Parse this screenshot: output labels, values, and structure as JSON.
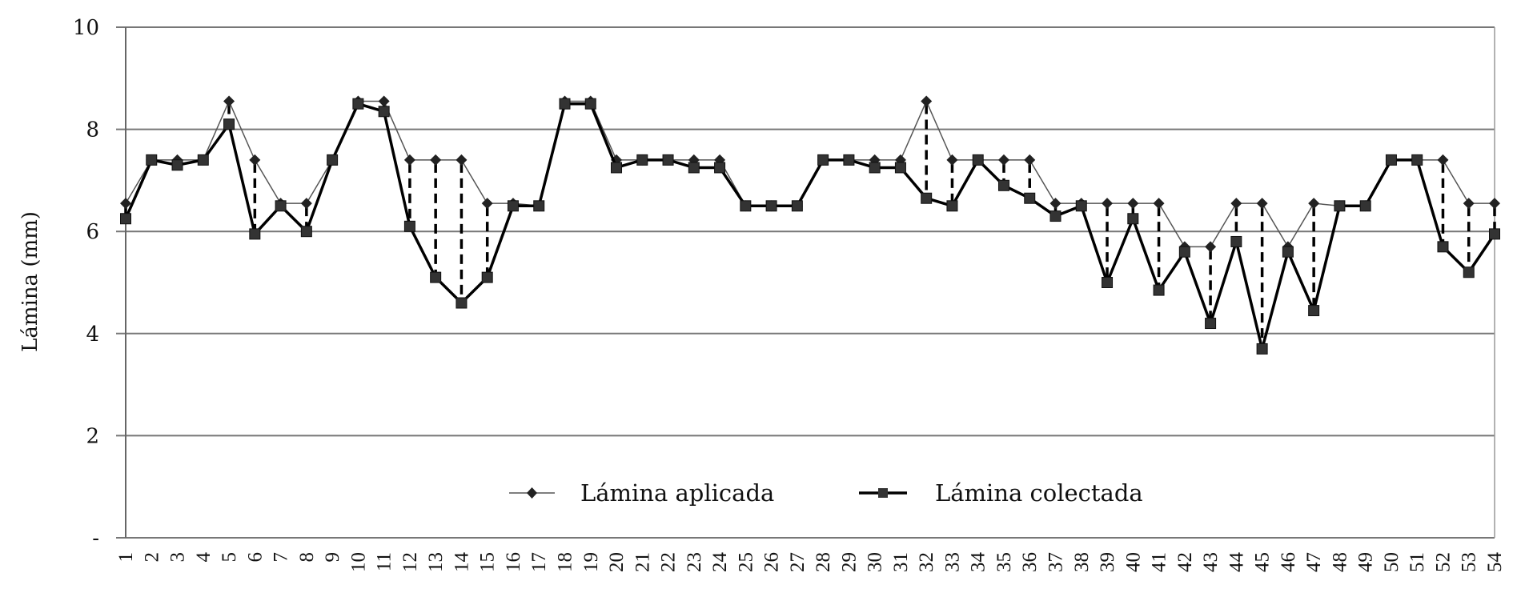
{
  "chart_data": {
    "type": "line",
    "title": "",
    "xlabel": "",
    "ylabel": "Lámina (mm)",
    "ylim": [
      0,
      10
    ],
    "yticks": [
      0,
      2,
      4,
      6,
      8,
      10
    ],
    "ytick_labels": [
      "-",
      "2",
      "4",
      "6",
      "8",
      "10"
    ],
    "grid": "horizontal",
    "legend_position": "bottom-inside",
    "categories": [
      "1",
      "2",
      "3",
      "4",
      "5",
      "6",
      "7",
      "8",
      "9",
      "10",
      "11",
      "12",
      "13",
      "14",
      "15",
      "16",
      "17",
      "18",
      "19",
      "20",
      "21",
      "22",
      "23",
      "24",
      "25",
      "26",
      "27",
      "28",
      "29",
      "30",
      "31",
      "32",
      "33",
      "34",
      "35",
      "36",
      "37",
      "38",
      "39",
      "40",
      "41",
      "42",
      "43",
      "44",
      "45",
      "46",
      "47",
      "48",
      "49",
      "50",
      "51",
      "52",
      "53",
      "54"
    ],
    "series": [
      {
        "name": "Lámina aplicada",
        "marker": "diamond",
        "color": "#555555",
        "line_width": 1.5,
        "values": [
          6.55,
          7.4,
          7.4,
          7.4,
          8.55,
          7.4,
          6.55,
          6.55,
          7.4,
          8.55,
          8.55,
          7.4,
          7.4,
          7.4,
          6.55,
          6.55,
          6.5,
          8.55,
          8.55,
          7.4,
          7.4,
          7.4,
          7.4,
          7.4,
          6.5,
          6.5,
          6.5,
          7.4,
          7.4,
          7.4,
          7.4,
          8.55,
          7.4,
          7.4,
          7.4,
          7.4,
          6.55,
          6.55,
          6.55,
          6.55,
          6.55,
          5.7,
          5.7,
          6.55,
          6.55,
          5.7,
          6.55,
          6.5,
          6.5,
          7.4,
          7.4,
          7.4,
          6.55,
          6.55
        ]
      },
      {
        "name": "Lámina colectada",
        "marker": "square",
        "color": "#000000",
        "line_width": 3.5,
        "values": [
          6.25,
          7.4,
          7.3,
          7.4,
          8.1,
          5.95,
          6.5,
          6.0,
          7.4,
          8.5,
          8.35,
          6.1,
          5.1,
          4.6,
          5.1,
          6.5,
          6.5,
          8.5,
          8.5,
          7.25,
          7.4,
          7.4,
          7.25,
          7.25,
          6.5,
          6.5,
          6.5,
          7.4,
          7.4,
          7.25,
          7.25,
          6.65,
          6.5,
          7.4,
          6.9,
          6.65,
          6.3,
          6.5,
          5.0,
          6.25,
          4.85,
          5.6,
          4.2,
          5.8,
          3.7,
          5.6,
          4.45,
          6.5,
          6.5,
          7.4,
          7.4,
          5.7,
          5.2,
          5.95
        ]
      }
    ],
    "annotations": "Dashed vertical drop lines connect each applied value to its collected value where they differ"
  },
  "legend": {
    "items": [
      {
        "label": "Lámina aplicada"
      },
      {
        "label": "Lámina colectada"
      }
    ]
  },
  "axes": {
    "ylabel": "Lámina (mm)"
  }
}
